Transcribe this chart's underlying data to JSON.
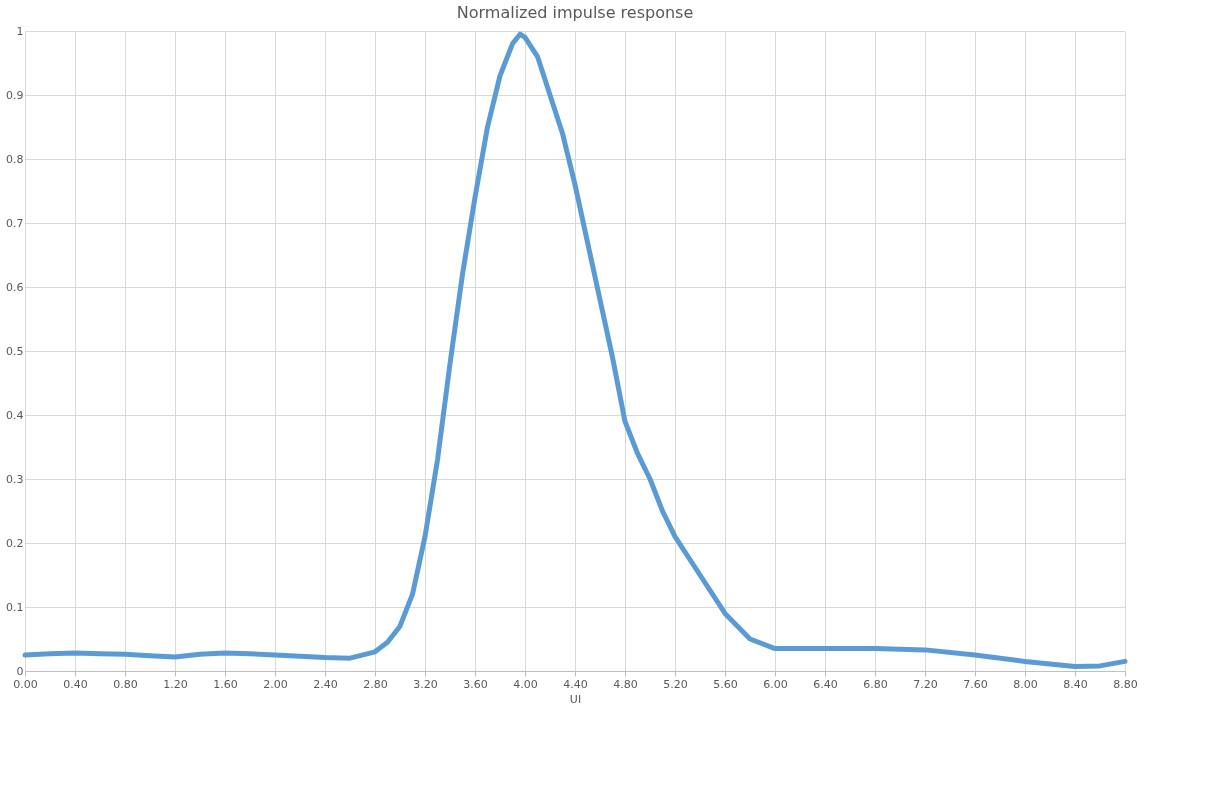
{
  "chart_data": {
    "type": "line",
    "title": "Normalized impulse response",
    "xlabel": "UI",
    "x": [
      0,
      0.2,
      0.4,
      0.6,
      0.8,
      1.0,
      1.2,
      1.4,
      1.6,
      1.8,
      2.0,
      2.2,
      2.4,
      2.6,
      2.8,
      2.9,
      3.0,
      3.1,
      3.2,
      3.3,
      3.4,
      3.5,
      3.6,
      3.7,
      3.8,
      3.9,
      3.96,
      4.0,
      4.1,
      4.2,
      4.3,
      4.4,
      4.5,
      4.6,
      4.7,
      4.8,
      4.9,
      5.0,
      5.1,
      5.2,
      5.4,
      5.6,
      5.8,
      6.0,
      6.4,
      6.8,
      7.2,
      7.6,
      8.0,
      8.4,
      8.6,
      8.8
    ],
    "series": [
      {
        "color": "#5b9bd5",
        "values": [
          0.025,
          0.027,
          0.028,
          0.027,
          0.026,
          0.024,
          0.022,
          0.026,
          0.028,
          0.027,
          0.025,
          0.023,
          0.021,
          0.02,
          0.03,
          0.045,
          0.07,
          0.12,
          0.21,
          0.33,
          0.48,
          0.62,
          0.74,
          0.85,
          0.93,
          0.98,
          0.995,
          0.99,
          0.96,
          0.9,
          0.84,
          0.76,
          0.67,
          0.58,
          0.49,
          0.39,
          0.34,
          0.3,
          0.25,
          0.21,
          0.15,
          0.09,
          0.05,
          0.035,
          0.035,
          0.035,
          0.033,
          0.025,
          0.015,
          0.007,
          0.008,
          0.015
        ]
      }
    ],
    "xlim": [
      0,
      8.8
    ],
    "xticks": [
      {
        "value": 0,
        "label": "0.00"
      },
      {
        "value": 0.4,
        "label": "0.40"
      },
      {
        "value": 0.8,
        "label": "0.80"
      },
      {
        "value": 1.2,
        "label": "1.20"
      },
      {
        "value": 1.6,
        "label": "1.60"
      },
      {
        "value": 2.0,
        "label": "2.00"
      },
      {
        "value": 2.4,
        "label": "2.40"
      },
      {
        "value": 2.8,
        "label": "2.80"
      },
      {
        "value": 3.2,
        "label": "3.20"
      },
      {
        "value": 3.6,
        "label": "3.60"
      },
      {
        "value": 4.0,
        "label": "4.00"
      },
      {
        "value": 4.4,
        "label": "4.40"
      },
      {
        "value": 4.8,
        "label": "4.80"
      },
      {
        "value": 5.2,
        "label": "5.20"
      },
      {
        "value": 5.6,
        "label": "5.60"
      },
      {
        "value": 6.0,
        "label": "6.00"
      },
      {
        "value": 6.4,
        "label": "6.40"
      },
      {
        "value": 6.8,
        "label": "6.80"
      },
      {
        "value": 7.2,
        "label": "7.20"
      },
      {
        "value": 7.6,
        "label": "7.60"
      },
      {
        "value": 8.0,
        "label": "8.00"
      },
      {
        "value": 8.4,
        "label": "8.40"
      },
      {
        "value": 8.8,
        "label": "8.80"
      }
    ],
    "ylim": [
      0,
      1
    ],
    "yticks": [
      0,
      0.1,
      0.2,
      0.3,
      0.4,
      0.5,
      0.6,
      0.7,
      0.8,
      0.9,
      1
    ],
    "grid": true,
    "marker": "none",
    "line_style": "solid"
  }
}
